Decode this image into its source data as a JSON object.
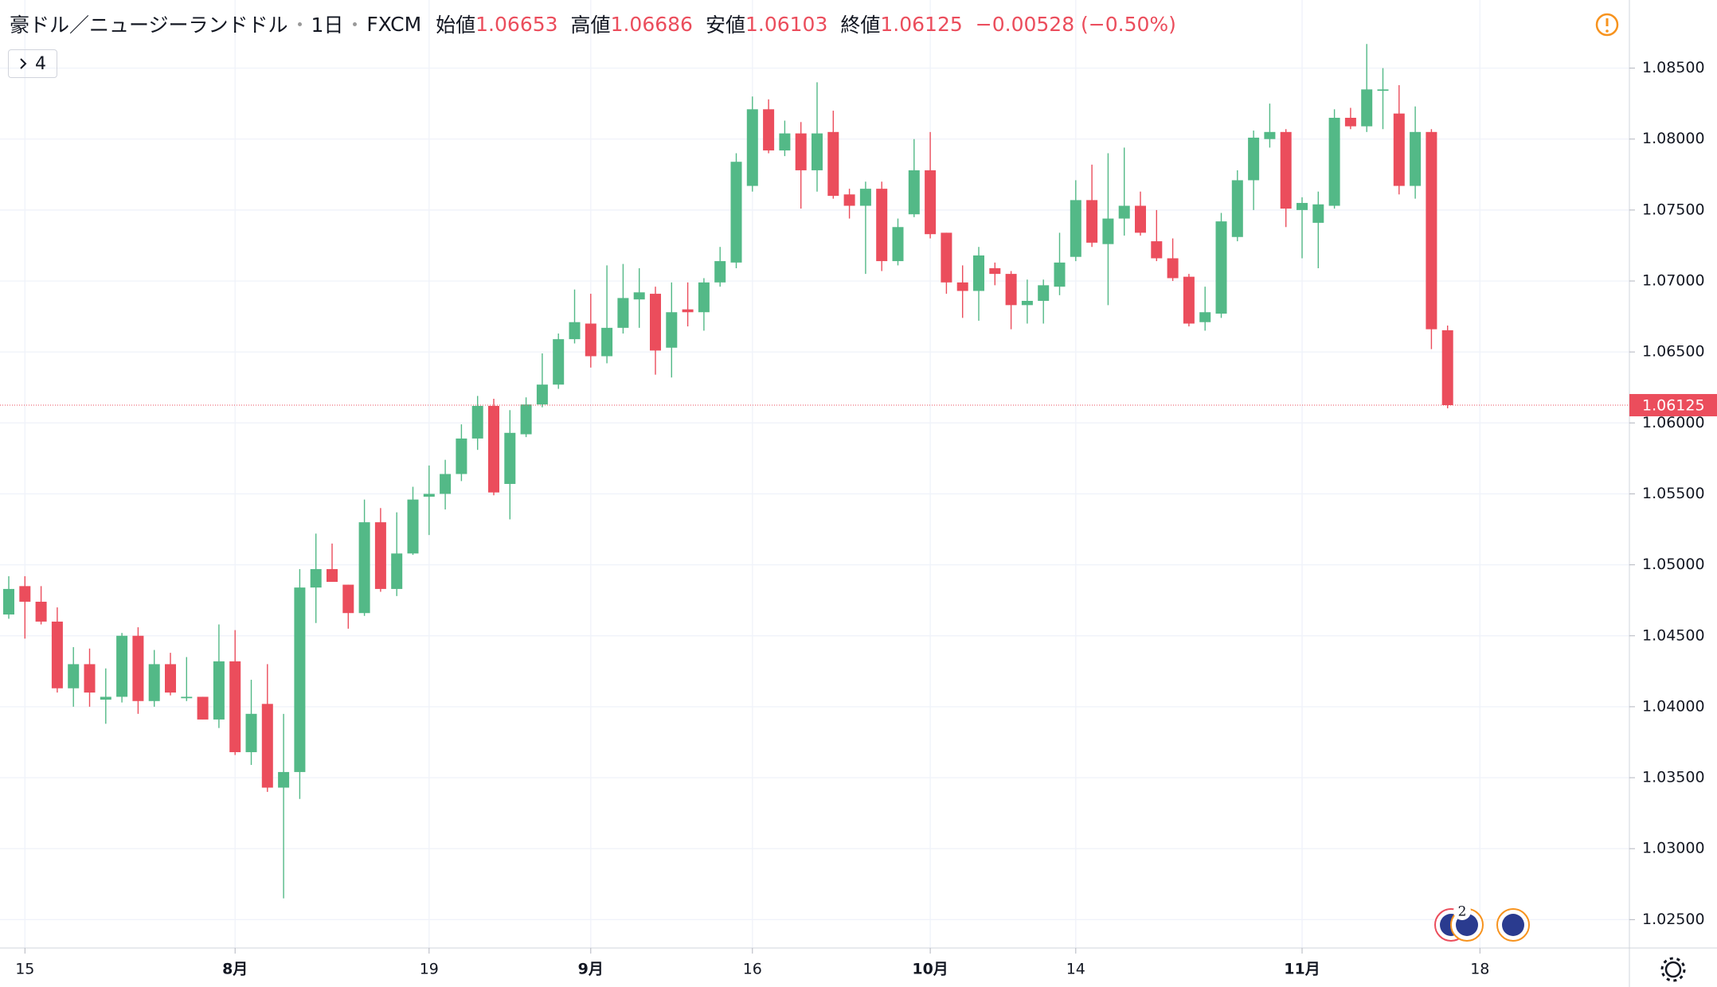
{
  "header": {
    "title": "豪ドル／ニュージーランドドル",
    "interval": "1日",
    "source": "FXCM",
    "stat_labels": [
      "始値",
      "高値",
      "安値",
      "終値"
    ],
    "change_label": "−0.00528 (−0.50%)",
    "indicators": 4
  },
  "chart_data": {
    "type": "candlestick",
    "up_color": "#53b987",
    "down_color": "#eb4d5c",
    "grid": true,
    "open": [
      1.0465,
      1.0485,
      1.0474,
      1.046,
      1.0413,
      1.043,
      1.0405,
      1.0407,
      1.045,
      1.0404,
      1.043,
      1.0406,
      1.0407,
      1.0391,
      1.0432,
      1.0368,
      1.0402,
      1.0343,
      1.0354,
      1.0484,
      1.0497,
      1.0486,
      1.0466,
      1.053,
      1.0483,
      1.0508,
      1.0548,
      1.055,
      1.0564,
      1.0589,
      1.0612,
      1.0557,
      1.0592,
      1.0613,
      1.0627,
      1.0659,
      1.067,
      1.0647,
      1.0667,
      1.0687,
      1.0691,
      1.0653,
      1.068,
      1.0678,
      1.0699,
      1.0713,
      1.0767,
      1.0821,
      1.0792,
      1.0804,
      1.0778,
      1.0805,
      1.0761,
      1.0753,
      1.0765,
      1.0714,
      1.0747,
      1.0778,
      1.0734,
      1.0699,
      1.0693,
      1.0709,
      1.0705,
      1.0683,
      1.0686,
      1.0696,
      1.0717,
      1.0757,
      1.0726,
      1.0744,
      1.0753,
      1.0728,
      1.0716,
      1.0703,
      1.0671,
      1.0677,
      1.0731,
      1.0771,
      1.08,
      1.0805,
      1.075,
      1.0741,
      1.0753,
      1.0815,
      1.0809,
      1.0834,
      1.0818,
      1.0767,
      1.0805,
      1.06653
    ],
    "high": [
      1.0492,
      1.0492,
      1.0485,
      1.047,
      1.0442,
      1.0441,
      1.0427,
      1.0452,
      1.0456,
      1.044,
      1.0438,
      1.0435,
      1.0407,
      1.0458,
      1.0454,
      1.0419,
      1.043,
      1.0395,
      1.0497,
      1.0522,
      1.0515,
      1.0486,
      1.0546,
      1.054,
      1.0537,
      1.0555,
      1.057,
      1.0574,
      1.0599,
      1.0619,
      1.0617,
      1.0609,
      1.0618,
      1.0649,
      1.0663,
      1.0694,
      1.0691,
      1.0711,
      1.0712,
      1.0709,
      1.0696,
      1.0699,
      1.0699,
      1.0702,
      1.0724,
      1.079,
      1.083,
      1.0828,
      1.0813,
      1.0812,
      1.084,
      1.082,
      1.0765,
      1.077,
      1.077,
      1.0744,
      1.08,
      1.0805,
      1.0734,
      1.0711,
      1.0724,
      1.0713,
      1.0707,
      1.0701,
      1.0701,
      1.0734,
      1.0771,
      1.0782,
      1.079,
      1.0794,
      1.0763,
      1.075,
      1.073,
      1.0705,
      1.0696,
      1.0748,
      1.0778,
      1.0806,
      1.0825,
      1.0807,
      1.0759,
      1.0763,
      1.0821,
      1.0822,
      1.0867,
      1.085,
      1.0838,
      1.0823,
      1.0807,
      1.06686
    ],
    "low": [
      1.0462,
      1.0448,
      1.0458,
      1.041,
      1.04,
      1.04,
      1.0388,
      1.0403,
      1.0395,
      1.04,
      1.0408,
      1.0404,
      1.0391,
      1.0385,
      1.0366,
      1.0359,
      1.034,
      1.0265,
      1.0335,
      1.0459,
      1.0488,
      1.0455,
      1.0464,
      1.0481,
      1.0478,
      1.0507,
      1.0521,
      1.0539,
      1.0559,
      1.0581,
      1.0549,
      1.0532,
      1.059,
      1.0611,
      1.0624,
      1.0656,
      1.0639,
      1.0642,
      1.0663,
      1.0667,
      1.0634,
      1.0632,
      1.0668,
      1.0665,
      1.0696,
      1.0709,
      1.0763,
      1.079,
      1.0788,
      1.0751,
      1.0763,
      1.0758,
      1.0744,
      1.0705,
      1.0707,
      1.0711,
      1.0745,
      1.073,
      1.0691,
      1.0674,
      1.0672,
      1.0697,
      1.0666,
      1.067,
      1.067,
      1.069,
      1.0714,
      1.0724,
      1.0683,
      1.0732,
      1.0732,
      1.0714,
      1.07,
      1.0668,
      1.0665,
      1.0674,
      1.0728,
      1.075,
      1.0794,
      1.0738,
      1.0716,
      1.0709,
      1.0751,
      1.0807,
      1.0805,
      1.0807,
      1.0761,
      1.0758,
      1.0652,
      1.06103
    ],
    "close": [
      1.0483,
      1.0474,
      1.046,
      1.0413,
      1.043,
      1.041,
      1.0407,
      1.045,
      1.0404,
      1.043,
      1.041,
      1.0407,
      1.0391,
      1.0432,
      1.0368,
      1.0395,
      1.0343,
      1.0354,
      1.0484,
      1.0497,
      1.0488,
      1.0466,
      1.053,
      1.0483,
      1.0508,
      1.0546,
      1.055,
      1.0564,
      1.0589,
      1.0612,
      1.0551,
      1.0593,
      1.0613,
      1.0627,
      1.0659,
      1.0671,
      1.0647,
      1.0667,
      1.0688,
      1.0692,
      1.0651,
      1.0678,
      1.0678,
      1.0699,
      1.0714,
      1.0784,
      1.0821,
      1.0792,
      1.0804,
      1.0778,
      1.0804,
      1.076,
      1.0753,
      1.0765,
      1.0714,
      1.0738,
      1.0778,
      1.0733,
      1.0699,
      1.0693,
      1.0718,
      1.0705,
      1.0683,
      1.0686,
      1.0697,
      1.0713,
      1.0757,
      1.0727,
      1.0744,
      1.0753,
      1.0734,
      1.0716,
      1.0702,
      1.067,
      1.0678,
      1.0742,
      1.0771,
      1.0801,
      1.0805,
      1.0751,
      1.0755,
      1.0754,
      1.0815,
      1.0809,
      1.0835,
      1.0835,
      1.0767,
      1.0805,
      1.0666,
      1.06125
    ],
    "ylim": [
      1.023,
      1.0898
    ],
    "yticks": [
      {
        "value": 1.025,
        "label": "1.02500"
      },
      {
        "value": 1.03,
        "label": "1.03000"
      },
      {
        "value": 1.035,
        "label": "1.03500"
      },
      {
        "value": 1.04,
        "label": "1.04000"
      },
      {
        "value": 1.045,
        "label": "1.04500"
      },
      {
        "value": 1.05,
        "label": "1.05000"
      },
      {
        "value": 1.055,
        "label": "1.05500"
      },
      {
        "value": 1.06,
        "label": "1.06000"
      },
      {
        "value": 1.065,
        "label": "1.06500"
      },
      {
        "value": 1.07,
        "label": "1.07000"
      },
      {
        "value": 1.075,
        "label": "1.07500"
      },
      {
        "value": 1.08,
        "label": "1.08000"
      },
      {
        "value": 1.085,
        "label": "1.08500"
      }
    ],
    "xticks": [
      {
        "value": 1,
        "label": "15"
      },
      {
        "value": 14,
        "label": "8月"
      },
      {
        "value": 26,
        "label": "19"
      },
      {
        "value": 36,
        "label": "9月"
      },
      {
        "value": 46,
        "label": "16"
      },
      {
        "value": 57,
        "label": "10月"
      },
      {
        "value": 66,
        "label": "14"
      },
      {
        "value": 80,
        "label": "11月"
      },
      {
        "value": 91,
        "label": "18"
      }
    ],
    "last_price": 1.06125,
    "event_badge": 2
  }
}
